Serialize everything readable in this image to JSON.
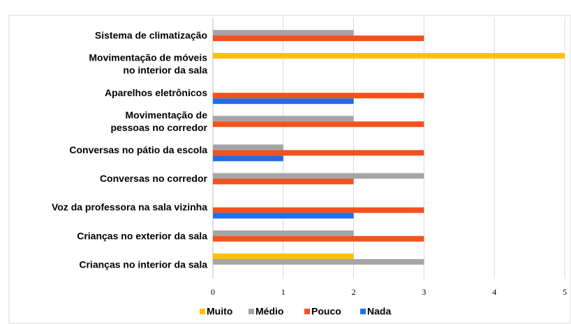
{
  "chart_data": {
    "type": "bar",
    "orientation": "horizontal",
    "categories": [
      "Sistema de climatização",
      "Movimentação de móveis\nno interior da sala",
      "Aparelhos eletrônicos",
      "Movimentação de\npessoas no corredor",
      "Conversas no pátio da escola",
      "Conversas no corredor",
      "Voz da professora na sala vizinha",
      "Crianças no exterior da sala",
      "Crianças no interior da sala"
    ],
    "series": [
      {
        "name": "Muito",
        "color": "#ffc000",
        "values": [
          0,
          5,
          0,
          0,
          0,
          0,
          0,
          0,
          2
        ]
      },
      {
        "name": "Médio",
        "color": "#a5a5a5",
        "values": [
          2,
          0,
          0,
          2,
          1,
          3,
          0,
          2,
          3
        ]
      },
      {
        "name": "Pouco",
        "color": "#f4511e",
        "values": [
          3,
          0,
          3,
          3,
          3,
          2,
          3,
          3,
          0
        ]
      },
      {
        "name": "Nada",
        "color": "#1f6fe5",
        "values": [
          0,
          0,
          2,
          0,
          1,
          0,
          2,
          0,
          0
        ]
      }
    ],
    "xlim": [
      0,
      5
    ],
    "xticks": [
      0,
      1,
      2,
      3,
      4,
      5
    ],
    "grid": true,
    "legend": "bottom"
  }
}
